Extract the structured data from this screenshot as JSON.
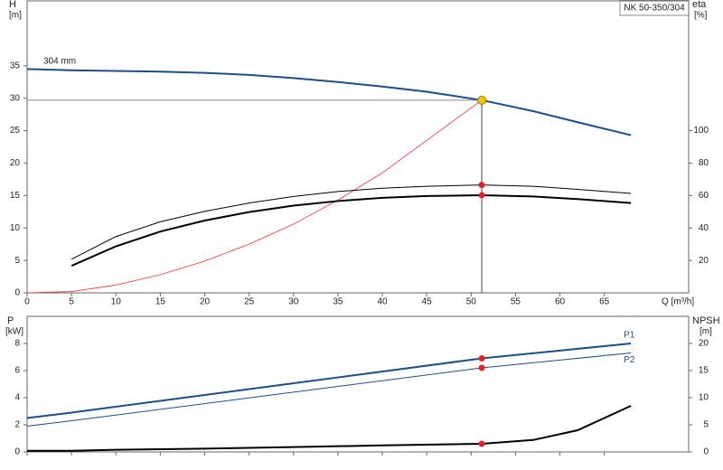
{
  "chart_data": [
    {
      "type": "line",
      "title": "NK 50-350/304",
      "xlabel": "Q [m³/h]",
      "ylabel": "H",
      "ylabel_unit": "[m]",
      "y2label": "eta",
      "y2label_unit": "[%]",
      "annotation": "304 mm",
      "xlim": [
        0,
        74.5
      ],
      "xticks": [
        0,
        5,
        10,
        15,
        20,
        25,
        30,
        35,
        40,
        45,
        50,
        55,
        60,
        65
      ],
      "ylim": [
        0,
        45
      ],
      "yticks": [
        0,
        5,
        10,
        15,
        20,
        25,
        30,
        35
      ],
      "y2lim": [
        0,
        180
      ],
      "y2ticks": [
        20,
        40,
        60,
        80,
        100
      ],
      "duty_x": 51.2,
      "duty_color": "#f5c400",
      "marker_color": "#e8202a",
      "series": [
        {
          "color": "#1a4f8a",
          "width": 2,
          "axis": "y",
          "duty": "yellow",
          "x": [
            0,
            5,
            10,
            15,
            20,
            25,
            30,
            35,
            40,
            45,
            51.2,
            57,
            62,
            68
          ],
          "values": [
            34.5,
            34.3,
            34.2,
            34.1,
            33.9,
            33.6,
            33.1,
            32.5,
            31.8,
            31.0,
            29.7,
            28.0,
            26.3,
            24.3
          ]
        },
        {
          "color": "#ff3030",
          "width": 0.8,
          "axis": "y",
          "x": [
            0,
            5,
            10,
            15,
            20,
            25,
            30,
            35,
            40,
            45,
            51.2
          ],
          "values": [
            0,
            0.2,
            1.2,
            2.8,
            4.9,
            7.5,
            10.6,
            14.3,
            18.5,
            23.5,
            29.7
          ]
        },
        {
          "color": "#000000",
          "width": 1,
          "axis": "y2",
          "duty": "red",
          "x": [
            5,
            10,
            15,
            20,
            25,
            30,
            35,
            40,
            45,
            51.2,
            57,
            62,
            68
          ],
          "values": [
            20.7,
            34.7,
            43.8,
            50.2,
            55.4,
            59.4,
            62.5,
            64.5,
            65.7,
            66.5,
            65.7,
            63.8,
            61.3
          ]
        },
        {
          "color": "#000000",
          "width": 2,
          "axis": "y2",
          "duty": "red",
          "x": [
            5,
            10,
            15,
            20,
            25,
            30,
            35,
            40,
            45,
            51.2,
            57,
            62,
            68
          ],
          "values": [
            16.7,
            28.7,
            37.8,
            44.6,
            49.8,
            53.8,
            56.6,
            58.6,
            59.7,
            60.2,
            59.4,
            57.8,
            55.4
          ]
        }
      ]
    },
    {
      "type": "line",
      "ylabel": "P",
      "ylabel_unit": "[kW]",
      "y2label": "NPSH",
      "y2label_unit": "[m]",
      "xlim": [
        0,
        74.5
      ],
      "xticks": [
        0,
        5,
        10,
        15,
        20,
        25,
        30,
        35,
        40,
        45,
        50,
        55,
        60,
        65
      ],
      "xtick_labels": false,
      "ylim": [
        0,
        10
      ],
      "yticks": [
        0,
        2,
        4,
        6,
        8
      ],
      "y2lim": [
        0,
        25
      ],
      "y2ticks": [
        0,
        5,
        10,
        15,
        20
      ],
      "duty_x": 51.2,
      "marker_color": "#e8202a",
      "series": [
        {
          "name": "P1",
          "color": "#1a4f8a",
          "width": 2,
          "axis": "y",
          "duty": "red",
          "x": [
            0,
            5,
            20,
            51.2,
            68
          ],
          "values": [
            2.5,
            2.9,
            4.2,
            6.9,
            8.0
          ]
        },
        {
          "name": "P2",
          "color": "#1a4f8a",
          "width": 1,
          "axis": "y",
          "duty": "red",
          "x": [
            0,
            5,
            51.2,
            68
          ],
          "values": [
            1.9,
            2.3,
            6.2,
            7.3
          ]
        },
        {
          "color": "#000000",
          "width": 2,
          "axis": "y2",
          "duty": "red",
          "x": [
            0,
            5,
            10,
            20,
            30,
            40,
            51.2,
            57,
            62,
            68
          ],
          "values": [
            0.2,
            0.2,
            0.4,
            0.6,
            0.9,
            1.2,
            1.5,
            2.2,
            4.0,
            8.5
          ]
        }
      ]
    }
  ]
}
